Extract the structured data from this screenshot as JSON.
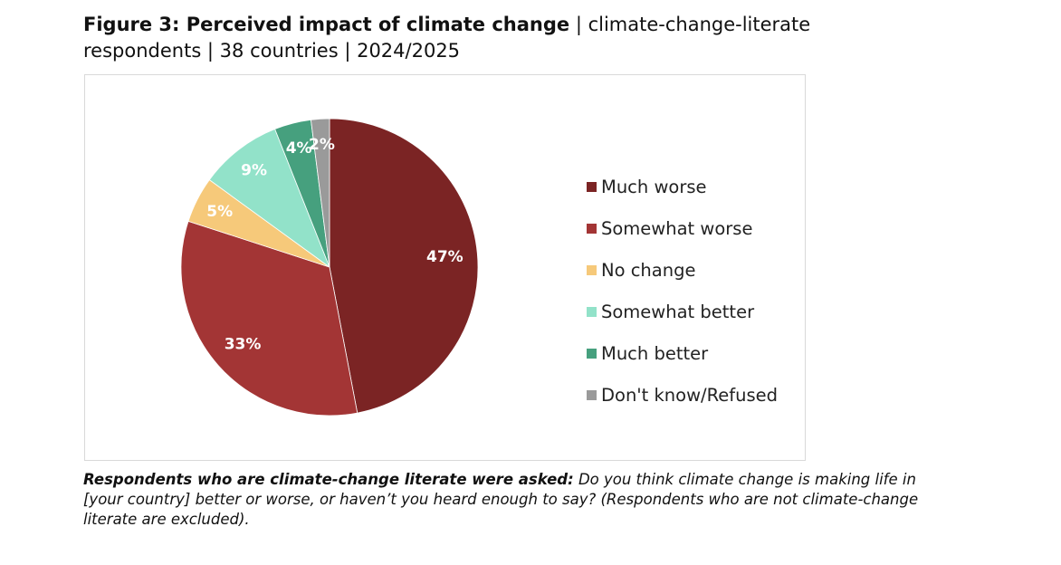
{
  "header": {
    "title_bold": "Figure 3: Perceived impact of climate change",
    "title_rest": " | climate-change-literate respondents | 38 countries | 2024/2025"
  },
  "chart_data": {
    "type": "pie",
    "title": "Figure 3: Perceived impact of climate change",
    "categories": [
      "Much worse",
      "Somewhat worse",
      "No change",
      "Somewhat better",
      "Much better",
      "Don't know/Refused"
    ],
    "values": [
      47,
      33,
      5,
      9,
      4,
      2
    ],
    "labels": [
      "47%",
      "33%",
      "5%",
      "9%",
      "4%",
      "2%"
    ],
    "colors": [
      "#7b2424",
      "#a33535",
      "#f6c97a",
      "#92e2c9",
      "#46a07e",
      "#9a9a9a"
    ],
    "legend_position": "right"
  },
  "caption": {
    "bold": "Respondents who are climate-change literate were asked:",
    "text": " Do you think climate change is making life in [your country] better or worse, or haven’t you heard enough to say? (Respondents who are not climate-change literate are excluded)."
  }
}
